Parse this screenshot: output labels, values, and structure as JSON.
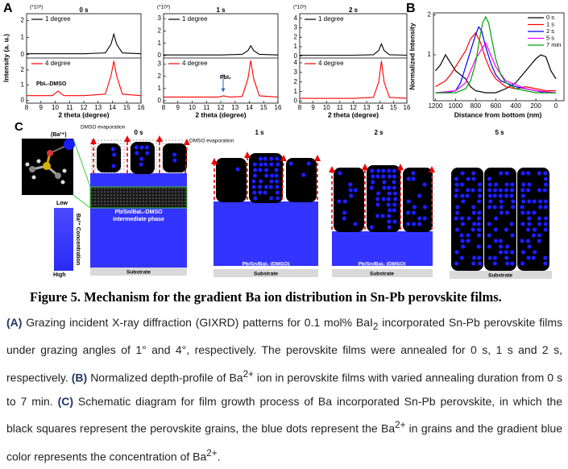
{
  "panel_a": {
    "label": "A",
    "ylabel": "Intensity (a. u.)",
    "plots": [
      {
        "title": "0 s",
        "unit": "(*10³)",
        "xlabel": "2 theta (degree)",
        "xlim": [
          8,
          16
        ],
        "xticks": [
          8,
          9,
          10,
          11,
          12,
          13,
          14,
          15,
          16
        ],
        "annotation": "PbI₂-DMSO",
        "top": {
          "label": "1 degree",
          "color": "#000000",
          "ylim": [
            -0.2,
            2.4
          ],
          "yticks": [
            0,
            1,
            2
          ],
          "x": [
            8,
            10,
            12,
            13.5,
            13.9,
            14.1,
            14.3,
            14.7,
            16
          ],
          "y": [
            0.05,
            0.05,
            0.05,
            0.1,
            0.6,
            1.2,
            0.6,
            0.1,
            0.05
          ]
        },
        "bottom": {
          "label": "4 degree",
          "color": "#ff0000",
          "ylim": [
            -0.2,
            2.8
          ],
          "yticks": [
            0,
            1,
            2
          ],
          "x": [
            8,
            9.8,
            10.2,
            10.6,
            12,
            13.5,
            13.9,
            14.1,
            14.3,
            14.7,
            16
          ],
          "y": [
            0.3,
            0.3,
            0.6,
            0.3,
            0.3,
            0.4,
            1.6,
            2.6,
            1.6,
            0.4,
            0.3
          ]
        }
      },
      {
        "title": "1 s",
        "unit": "(*10³)",
        "xlabel": "2 theta (degree)",
        "xlim": [
          8,
          16
        ],
        "xticks": [
          8,
          9,
          10,
          11,
          12,
          13,
          14,
          15,
          16
        ],
        "annotation": "PbI₂",
        "top": {
          "label": "1 degree",
          "color": "#000000",
          "ylim": [
            -0.2,
            3.4
          ],
          "yticks": [
            0,
            1,
            2,
            3
          ],
          "x": [
            8,
            10,
            12,
            13.5,
            13.9,
            14.1,
            14.3,
            14.7,
            16
          ],
          "y": [
            0.05,
            0.05,
            0.05,
            0.1,
            0.4,
            0.8,
            0.4,
            0.1,
            0.05
          ]
        },
        "bottom": {
          "label": "4 degree",
          "color": "#ff0000",
          "ylim": [
            -0.2,
            3.5
          ],
          "yticks": [
            0,
            1,
            2,
            3
          ],
          "x": [
            8,
            11.8,
            12.2,
            12.6,
            13.5,
            13.9,
            14.1,
            14.3,
            14.7,
            16
          ],
          "y": [
            0.3,
            0.3,
            0.4,
            0.3,
            0.35,
            1.8,
            3.3,
            1.8,
            0.4,
            0.3
          ]
        }
      },
      {
        "title": "2 s",
        "unit": "(*10³)",
        "xlabel": "2 theta (degree)",
        "xlim": [
          8,
          16
        ],
        "xticks": [
          8,
          9,
          10,
          11,
          12,
          13,
          14,
          15,
          16
        ],
        "top": {
          "label": "1 degree",
          "color": "#000000",
          "ylim": [
            -0.2,
            4.5
          ],
          "yticks": [
            0,
            1,
            2,
            3,
            4
          ],
          "x": [
            8,
            10,
            12,
            13.5,
            13.9,
            14.1,
            14.3,
            14.7,
            16
          ],
          "y": [
            0.1,
            0.1,
            0.1,
            0.15,
            0.6,
            1.3,
            0.6,
            0.15,
            0.1
          ]
        },
        "bottom": {
          "label": "4 degree",
          "color": "#ff0000",
          "ylim": [
            -0.2,
            4.5
          ],
          "yticks": [
            0,
            1,
            2,
            3,
            4
          ],
          "x": [
            8,
            10,
            12,
            13.5,
            13.9,
            14.1,
            14.3,
            14.7,
            16
          ],
          "y": [
            0.3,
            0.3,
            0.3,
            0.4,
            2,
            4.2,
            2,
            0.4,
            0.3
          ]
        }
      }
    ]
  },
  "panel_b": {
    "label": "B",
    "xlabel": "Distance from bottom (nm)",
    "ylabel": "Normalized Intensity",
    "xlim": [
      1220,
      -80
    ],
    "xticks": [
      1200,
      1000,
      800,
      600,
      400,
      200,
      0
    ],
    "ylim": [
      -0.15,
      2.05
    ],
    "yticks": [
      1,
      2
    ],
    "series": [
      {
        "name": "0 s",
        "color": "#000000",
        "x": [
          1200,
          1150,
          1100,
          1050,
          1000,
          950,
          900,
          850,
          800,
          700,
          600,
          500,
          400,
          350,
          300,
          250,
          200,
          150,
          100,
          50,
          0
        ],
        "values": [
          0.6,
          0.75,
          1.0,
          0.8,
          0.6,
          0.5,
          0.4,
          0.2,
          0.1,
          0.05,
          0.05,
          0.15,
          0.3,
          0.45,
          0.6,
          0.75,
          0.9,
          1.0,
          0.95,
          0.6,
          0.4
        ]
      },
      {
        "name": "1 s",
        "color": "#ff0000",
        "x": [
          1200,
          1100,
          1050,
          1000,
          950,
          900,
          850,
          800,
          750,
          700,
          650,
          600,
          500,
          400,
          300,
          200,
          100,
          0
        ],
        "values": [
          0.2,
          0.35,
          0.5,
          0.7,
          0.9,
          1.1,
          1.4,
          1.55,
          1.3,
          0.9,
          0.6,
          0.4,
          0.2,
          0.15,
          0.2,
          0.15,
          0.1,
          0.1
        ]
      },
      {
        "name": "2 s",
        "color": "#0000ff",
        "x": [
          1200,
          1100,
          1000,
          950,
          900,
          850,
          800,
          770,
          740,
          700,
          650,
          600,
          550,
          500,
          400,
          300,
          200,
          100,
          0
        ],
        "values": [
          0.05,
          0.05,
          0.1,
          0.3,
          0.7,
          1.1,
          1.5,
          1.7,
          1.6,
          1.2,
          0.8,
          0.5,
          0.35,
          0.3,
          0.2,
          0.15,
          0.1,
          0.05,
          0.05
        ]
      },
      {
        "name": "5 s",
        "color": "#ff00ff",
        "x": [
          1200,
          1000,
          900,
          850,
          800,
          750,
          700,
          650,
          600,
          500,
          400,
          300,
          200,
          0
        ],
        "values": [
          0.05,
          0.1,
          0.3,
          0.6,
          0.9,
          1.1,
          1.3,
          1.0,
          0.7,
          0.35,
          0.25,
          0.15,
          0.1,
          0.05
        ]
      },
      {
        "name": "7 min",
        "color": "#00a000",
        "x": [
          1200,
          1000,
          900,
          850,
          800,
          760,
          730,
          700,
          670,
          640,
          600,
          550,
          500,
          400,
          300,
          200,
          0
        ],
        "values": [
          0.05,
          0.05,
          0.15,
          0.35,
          0.8,
          1.4,
          1.8,
          1.95,
          1.8,
          1.4,
          0.9,
          0.5,
          0.3,
          0.15,
          0.1,
          0.05,
          0.05
        ]
      }
    ]
  },
  "panel_c": {
    "label": "C",
    "ion": "(Ba²⁺)",
    "evaporation": "DMSO evaporation",
    "stages": [
      "0 s",
      "1 s",
      "2 s",
      "5 s"
    ],
    "low": "Low",
    "high": "High",
    "concentration": "Ba²⁺ Concentration",
    "intermediate": [
      "Pb/Sn/BaI₂-DMSO",
      "intermediate phase"
    ],
    "film": "Pb/Sn/BaI₂ (DMSO)",
    "substrate": "Substrate"
  },
  "caption": {
    "title": "Figure 5. Mechanism for the gradient Ba ion distribution in Sn-Pb perovskite films.",
    "body": [
      "(A)",
      " Grazing incident X-ray diffraction (GIXRD) patterns for 0.1 mol% BaI",
      "2",
      " incorporated Sn-Pb perovskite films under grazing angles of 1° and 4°, respectively. The perovskite films were annealed for 0 s, 1 s and 2 s, respectively. ",
      "(B)",
      " Normalized depth-profile of Ba",
      "2+",
      " ion in perovskite films with varied annealing duration from 0 s to 7 min. ",
      "(C)",
      " Schematic diagram for film growth process of Ba incorporated Sn-Pb perovskite, in which the black squares represent the perovskite grains, the blue dots represent the Ba",
      "2+",
      " in grains and the gradient blue color represents the concentration of Ba",
      "2+",
      "."
    ]
  }
}
